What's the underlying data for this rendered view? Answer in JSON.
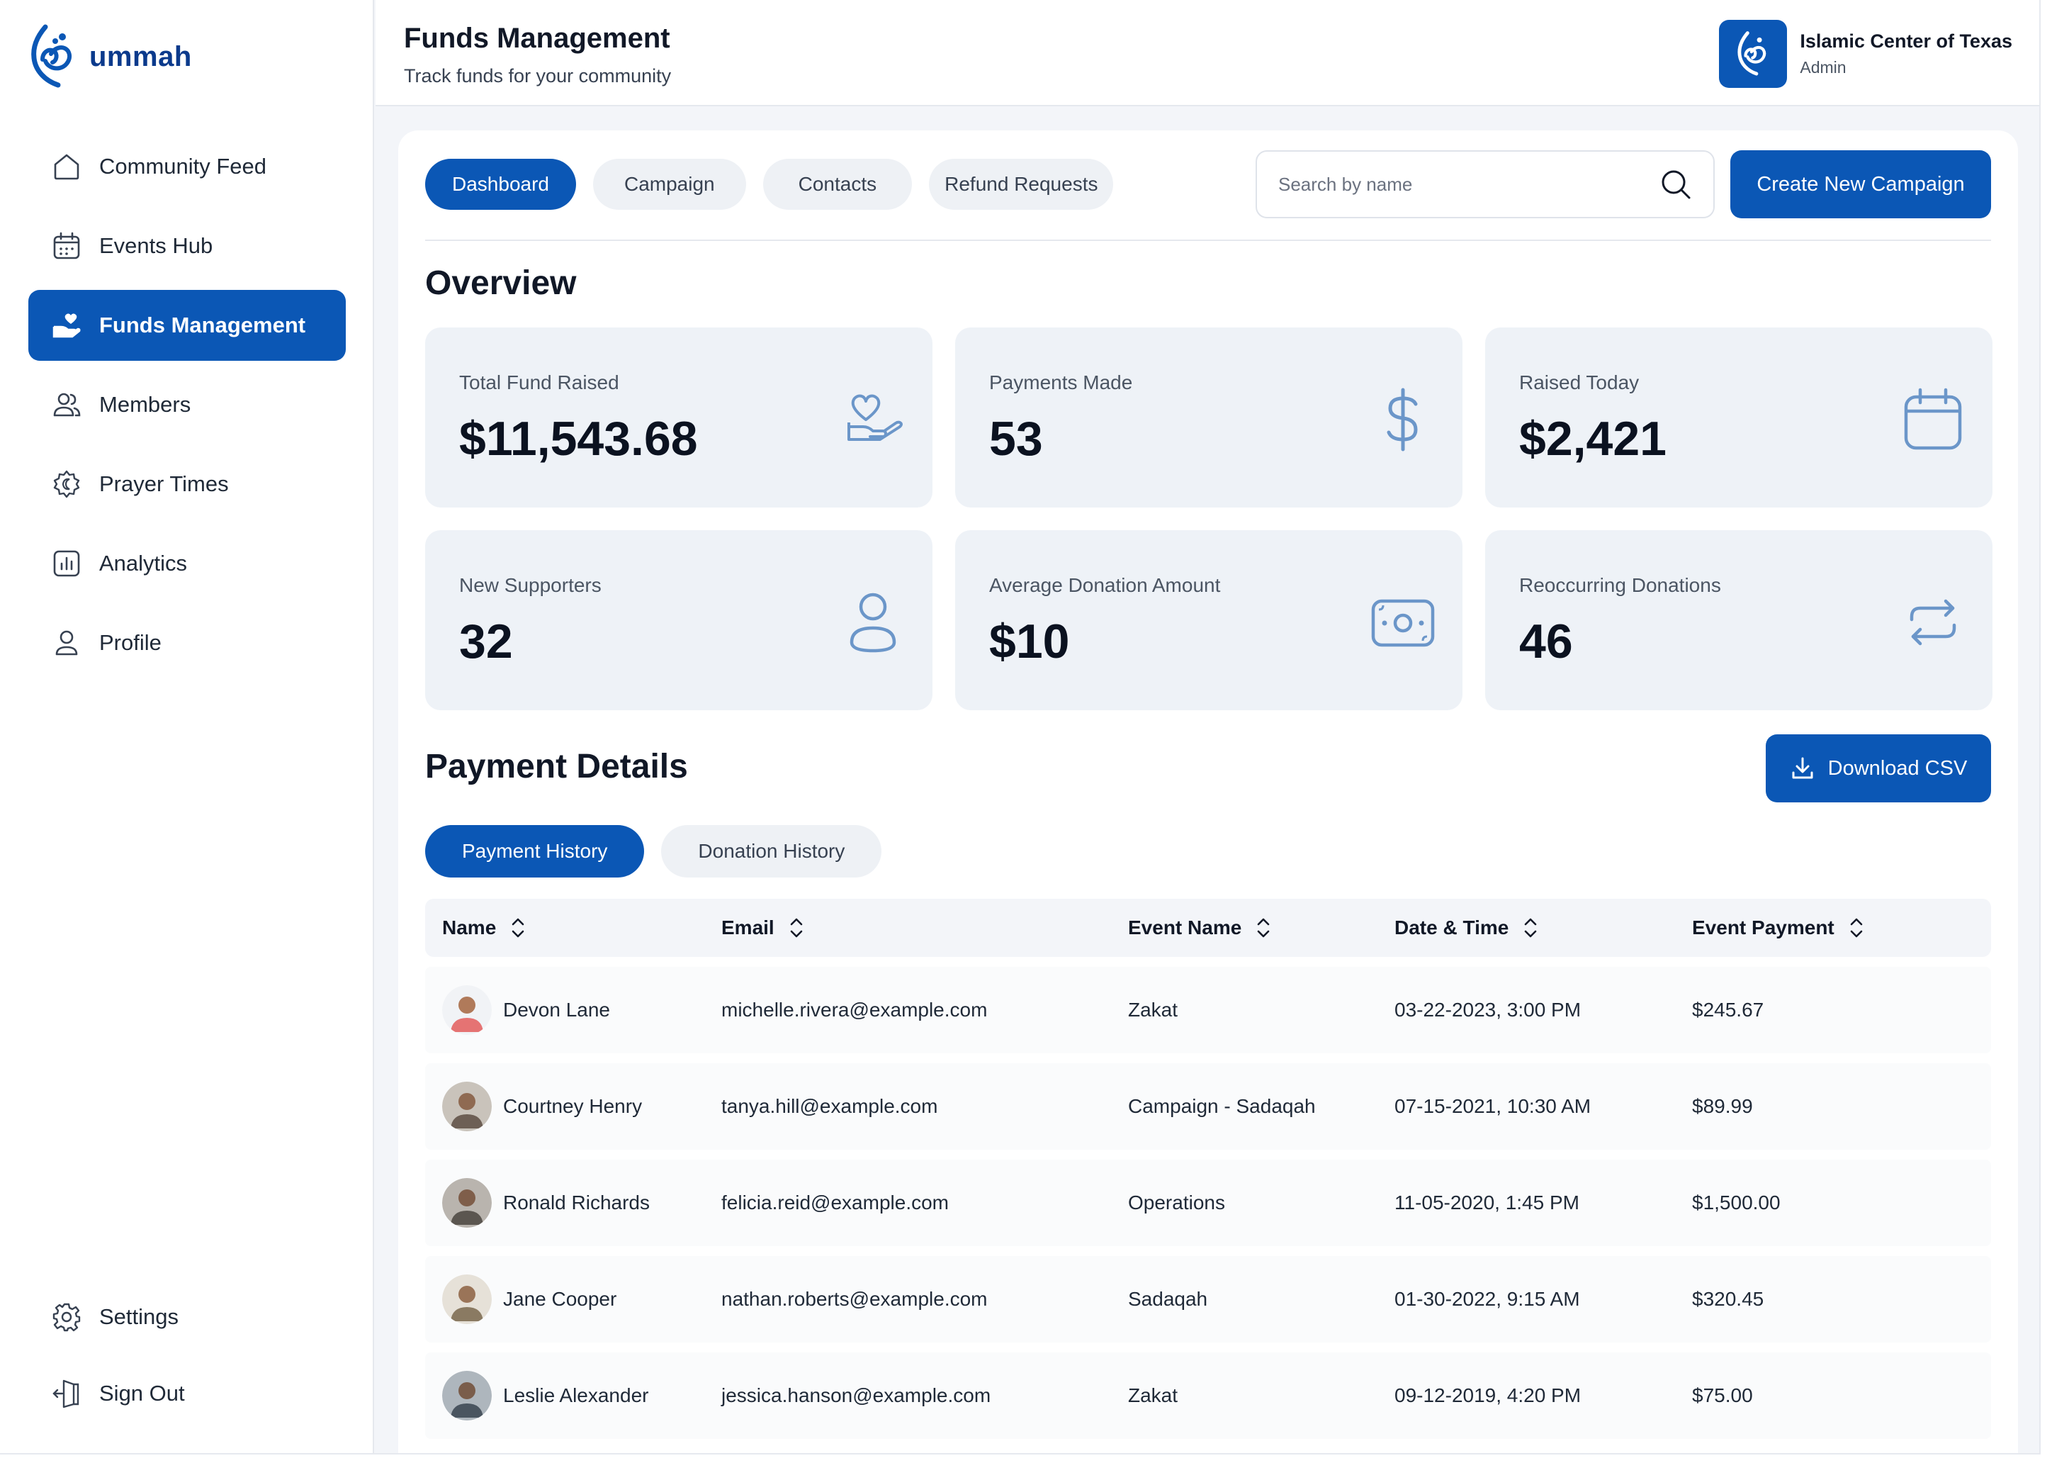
{
  "brand": {
    "name": "ummah",
    "color": "#0b57b5"
  },
  "sidebar": {
    "items": [
      {
        "label": "Community Feed",
        "icon": "home-icon"
      },
      {
        "label": "Events Hub",
        "icon": "calendar-icon"
      },
      {
        "label": "Funds Management",
        "icon": "hand-heart-icon",
        "active": true
      },
      {
        "label": "Members",
        "icon": "users-icon"
      },
      {
        "label": "Prayer Times",
        "icon": "crescent-icon"
      },
      {
        "label": "Analytics",
        "icon": "bar-chart-icon"
      },
      {
        "label": "Profile",
        "icon": "user-icon"
      }
    ],
    "bottom": [
      {
        "label": "Settings",
        "icon": "gear-icon"
      },
      {
        "label": "Sign Out",
        "icon": "sign-out-icon"
      }
    ]
  },
  "header": {
    "title": "Funds Management",
    "subtitle": "Track funds for your community",
    "org_name": "Islamic Center of Texas",
    "org_role": "Admin"
  },
  "tabs": [
    {
      "label": "Dashboard",
      "active": true
    },
    {
      "label": "Campaign"
    },
    {
      "label": "Contacts"
    },
    {
      "label": "Refund Requests"
    }
  ],
  "search": {
    "placeholder": "Search by name",
    "value": ""
  },
  "create_button": "Create New Campaign",
  "overview": {
    "title": "Overview",
    "cards": [
      {
        "label": "Total Fund Raised",
        "value": "$11,543.68",
        "icon": "hand-heart-icon"
      },
      {
        "label": "Payments Made",
        "value": "53",
        "icon": "dollar-icon"
      },
      {
        "label": "Raised Today",
        "value": "$2,421",
        "icon": "calendar-icon"
      },
      {
        "label": "New Supporters",
        "value": "32",
        "icon": "user-icon"
      },
      {
        "label": "Average Donation Amount",
        "value": "$10",
        "icon": "cash-icon"
      },
      {
        "label": "Reoccurring Donations",
        "value": "46",
        "icon": "repeat-icon"
      }
    ]
  },
  "payment_details": {
    "title": "Payment Details",
    "download_button": "Download CSV",
    "subtabs": [
      {
        "label": "Payment History",
        "active": true
      },
      {
        "label": "Donation History"
      }
    ],
    "columns": [
      "Name",
      "Email",
      "Event Name",
      "Date & Time",
      "Event Payment"
    ],
    "rows": [
      {
        "name": "Devon Lane",
        "email": "michelle.rivera@example.com",
        "event": "Zakat",
        "datetime": "03-22-2023, 3:00 PM",
        "payment": "$245.67",
        "avatar_color": "#e57373"
      },
      {
        "name": "Courtney Henry",
        "email": "tanya.hill@example.com",
        "event": "Campaign - Sadaqah",
        "datetime": "07-15-2021, 10:30 AM",
        "payment": "$89.99",
        "avatar_color": "#6d5f55"
      },
      {
        "name": "Ronald Richards",
        "email": "felicia.reid@example.com",
        "event": "Operations",
        "datetime": "11-05-2020, 1:45 PM",
        "payment": "$1,500.00",
        "avatar_color": "#5b5650"
      },
      {
        "name": "Jane Cooper",
        "email": "nathan.roberts@example.com",
        "event": "Sadaqah",
        "datetime": "01-30-2022, 9:15 AM",
        "payment": "$320.45",
        "avatar_color": "#8a7a62"
      },
      {
        "name": "Leslie Alexander",
        "email": "jessica.hanson@example.com",
        "event": "Zakat",
        "datetime": "09-12-2019, 4:20 PM",
        "payment": "$75.00",
        "avatar_color": "#4a5560"
      }
    ]
  }
}
